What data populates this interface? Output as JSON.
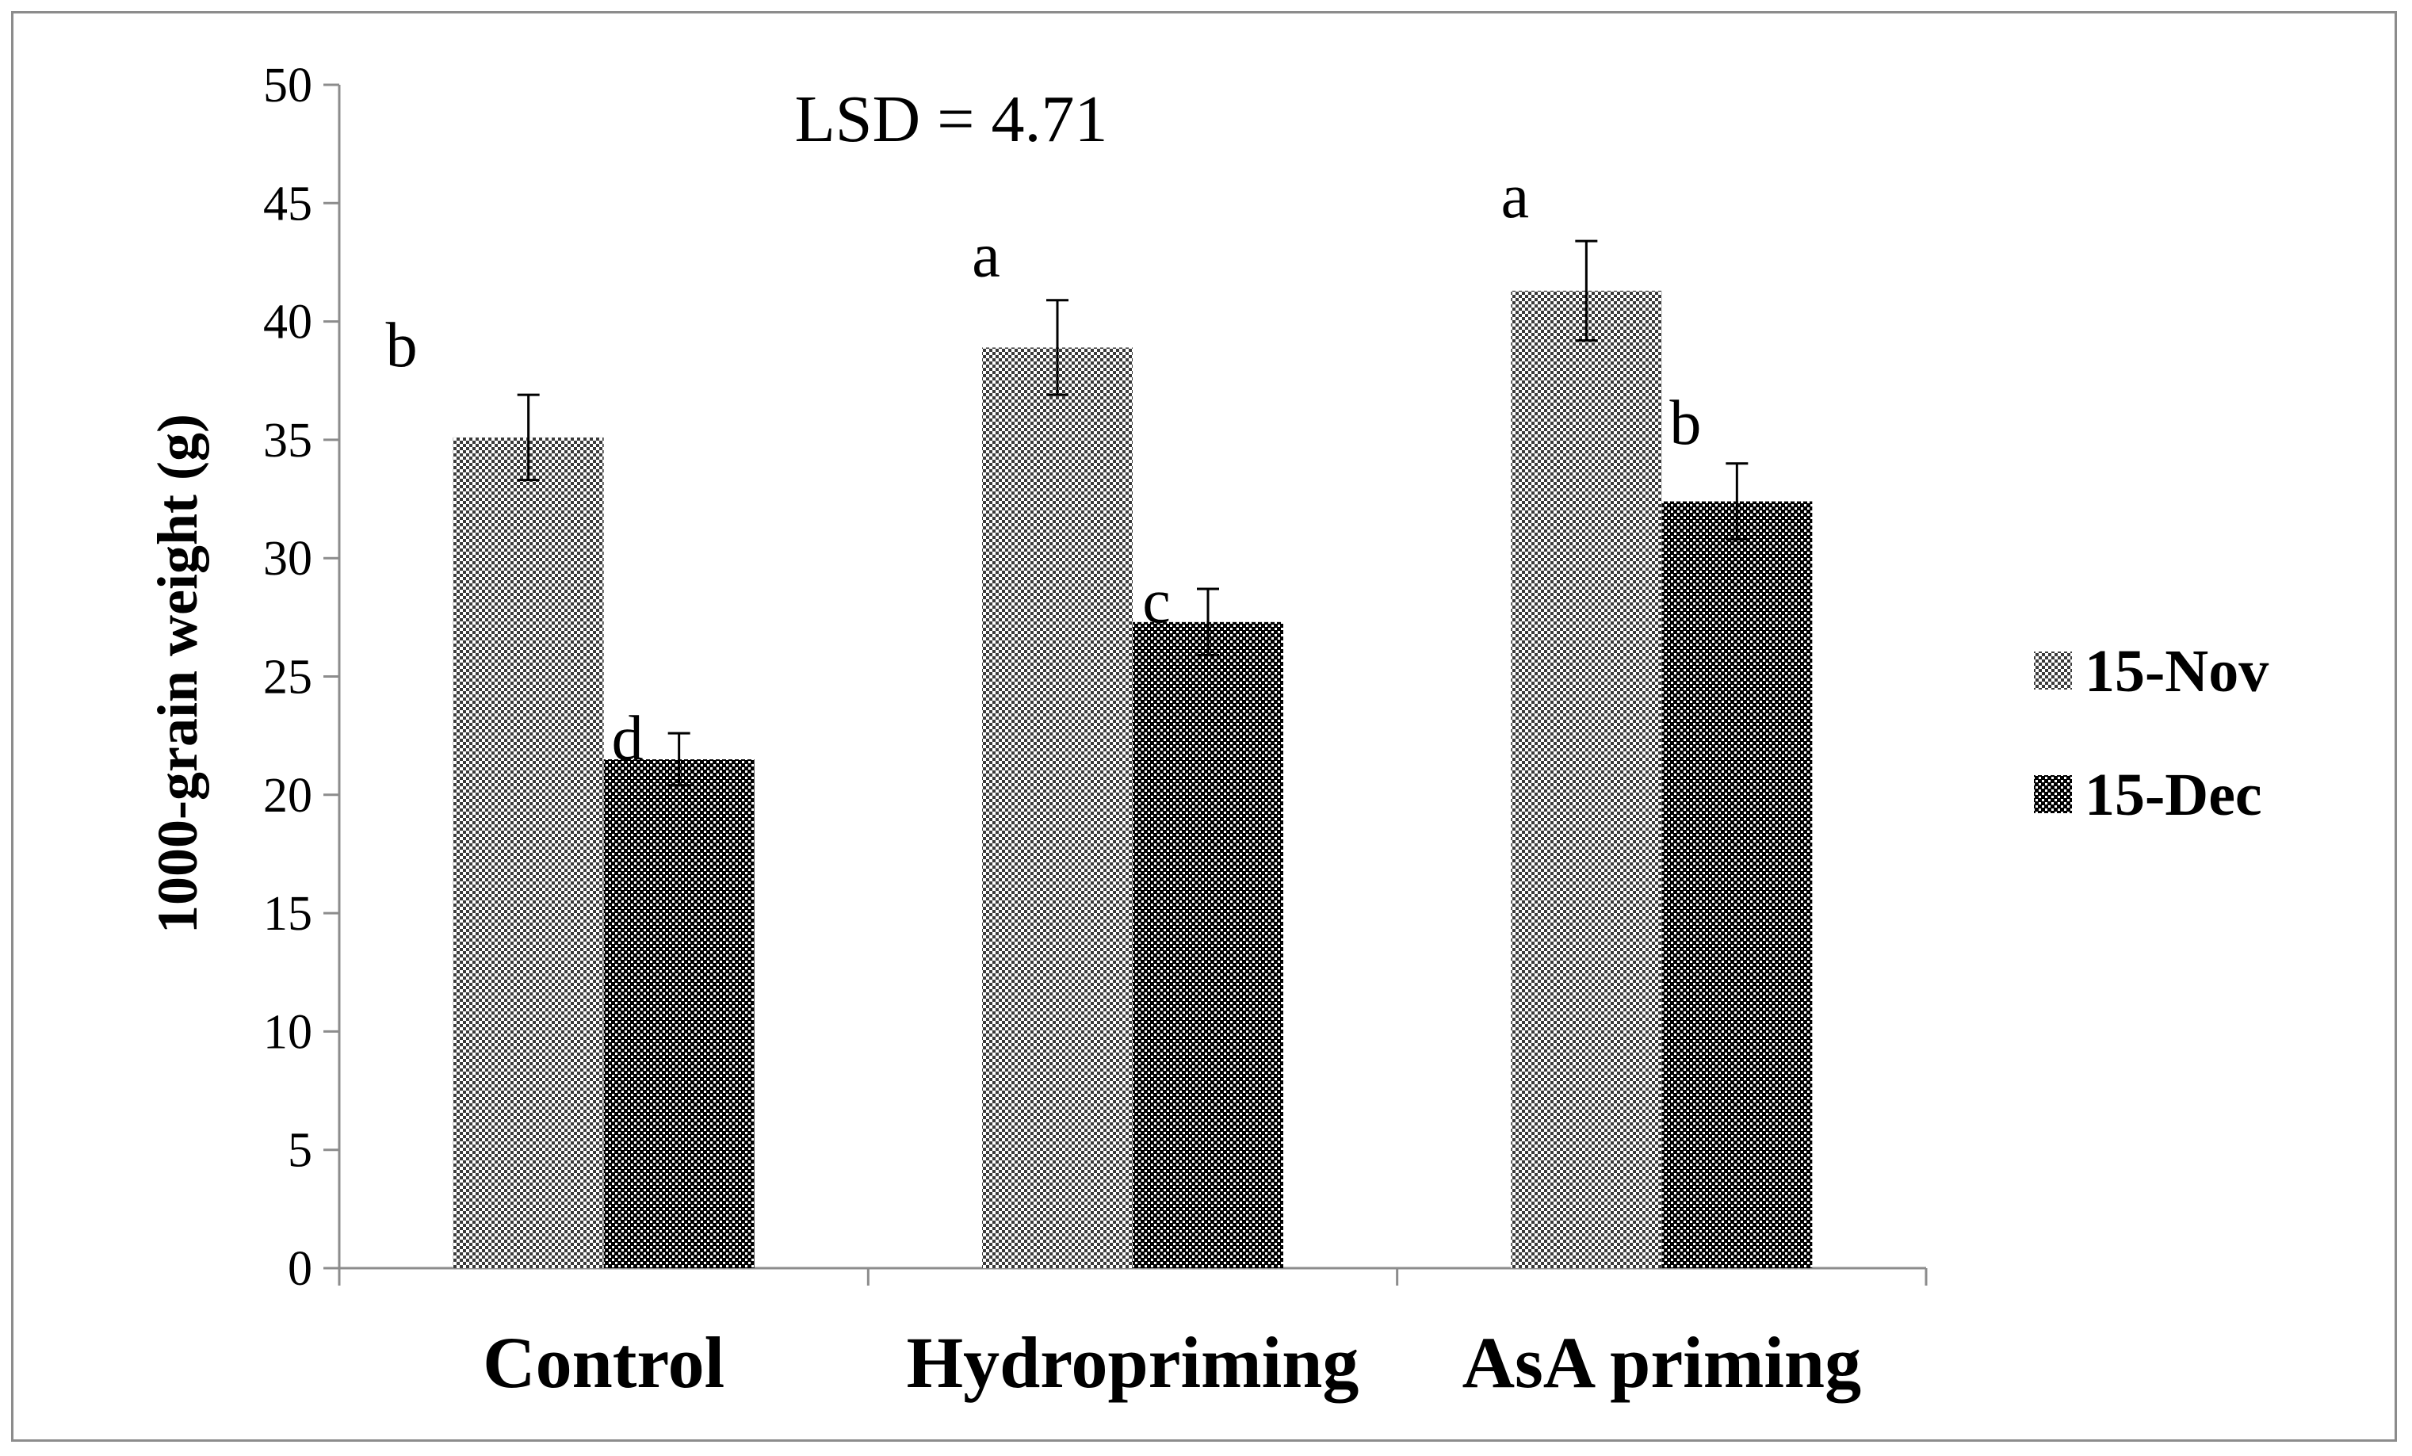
{
  "chart_data": {
    "type": "bar",
    "title": "",
    "xlabel": "",
    "ylabel": "1000-grain weight (g)",
    "ylim": [
      0,
      50
    ],
    "yticks": [
      0,
      5,
      10,
      15,
      20,
      25,
      30,
      35,
      40,
      45,
      50
    ],
    "grid": false,
    "categories": [
      "Control",
      "Hydropriming",
      "AsA priming"
    ],
    "series": [
      {
        "name": "15-Nov",
        "values": [
          35.1,
          38.9,
          41.3
        ],
        "errors": [
          1.8,
          2.0,
          2.1
        ],
        "letters": [
          "b",
          "a",
          "a"
        ],
        "pattern": "fine-check"
      },
      {
        "name": "15-Dec",
        "values": [
          21.5,
          27.3,
          32.4
        ],
        "errors": [
          1.1,
          1.4,
          1.6
        ],
        "letters": [
          "d",
          "c",
          "b"
        ],
        "pattern": "dense-check"
      }
    ],
    "annotation": "LSD = 4.71",
    "legend_position": "right"
  },
  "colors": {
    "axis": "#8c8c8c",
    "frame": "#8c8c8c",
    "bar_light_fg": "#3a3a3a",
    "bar_dark_fg": "#000000",
    "bar_bg": "#ffffff"
  }
}
